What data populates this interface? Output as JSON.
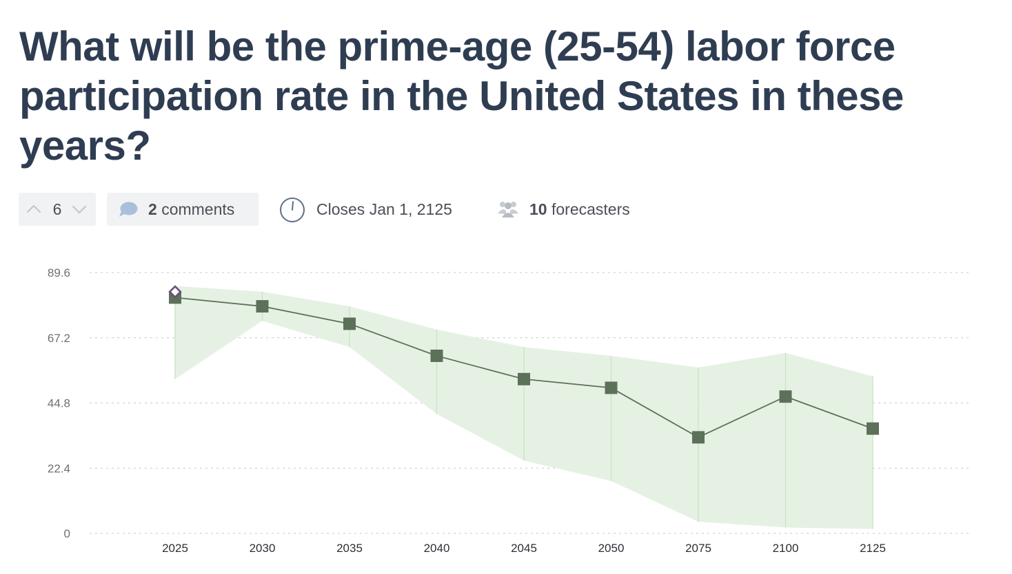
{
  "question": {
    "title": "What will be the prime-age (25-54) labor force participation rate in the United States in these years?"
  },
  "meta": {
    "votes": "6",
    "comments_count": "2",
    "comments_label": "comments",
    "closes": "Closes Jan 1, 2125",
    "forecasters_count": "10",
    "forecasters_label": "forecasters"
  },
  "icons": {
    "upvote": "chevron-up-icon",
    "downvote": "chevron-down-icon",
    "comments": "speech-bubble-icon",
    "closes": "clock-icon",
    "forecasters": "people-icon"
  },
  "colors": {
    "title": "#2f3d52",
    "band": "#e4f1e1",
    "line": "#5d7059",
    "marker": "#5d7059",
    "community_marker": "#6b4f7a"
  },
  "chart_data": {
    "type": "line",
    "categories": [
      "2025",
      "2030",
      "2035",
      "2040",
      "2045",
      "2050",
      "2075",
      "2100",
      "2125"
    ],
    "yticks": [
      "0",
      "22.4",
      "44.8",
      "67.2",
      "89.6"
    ],
    "ylim": [
      0,
      89.6
    ],
    "grid": true,
    "series": [
      {
        "values": [
          81,
          78,
          72,
          61,
          53,
          50,
          33,
          47,
          36
        ],
        "lower": [
          53,
          73,
          64,
          41,
          25,
          18,
          4,
          2,
          1.5
        ],
        "upper": [
          85,
          83,
          78,
          70,
          64,
          61,
          57,
          62,
          54
        ]
      }
    ],
    "highlight": {
      "category": "2025",
      "value": 83
    }
  }
}
